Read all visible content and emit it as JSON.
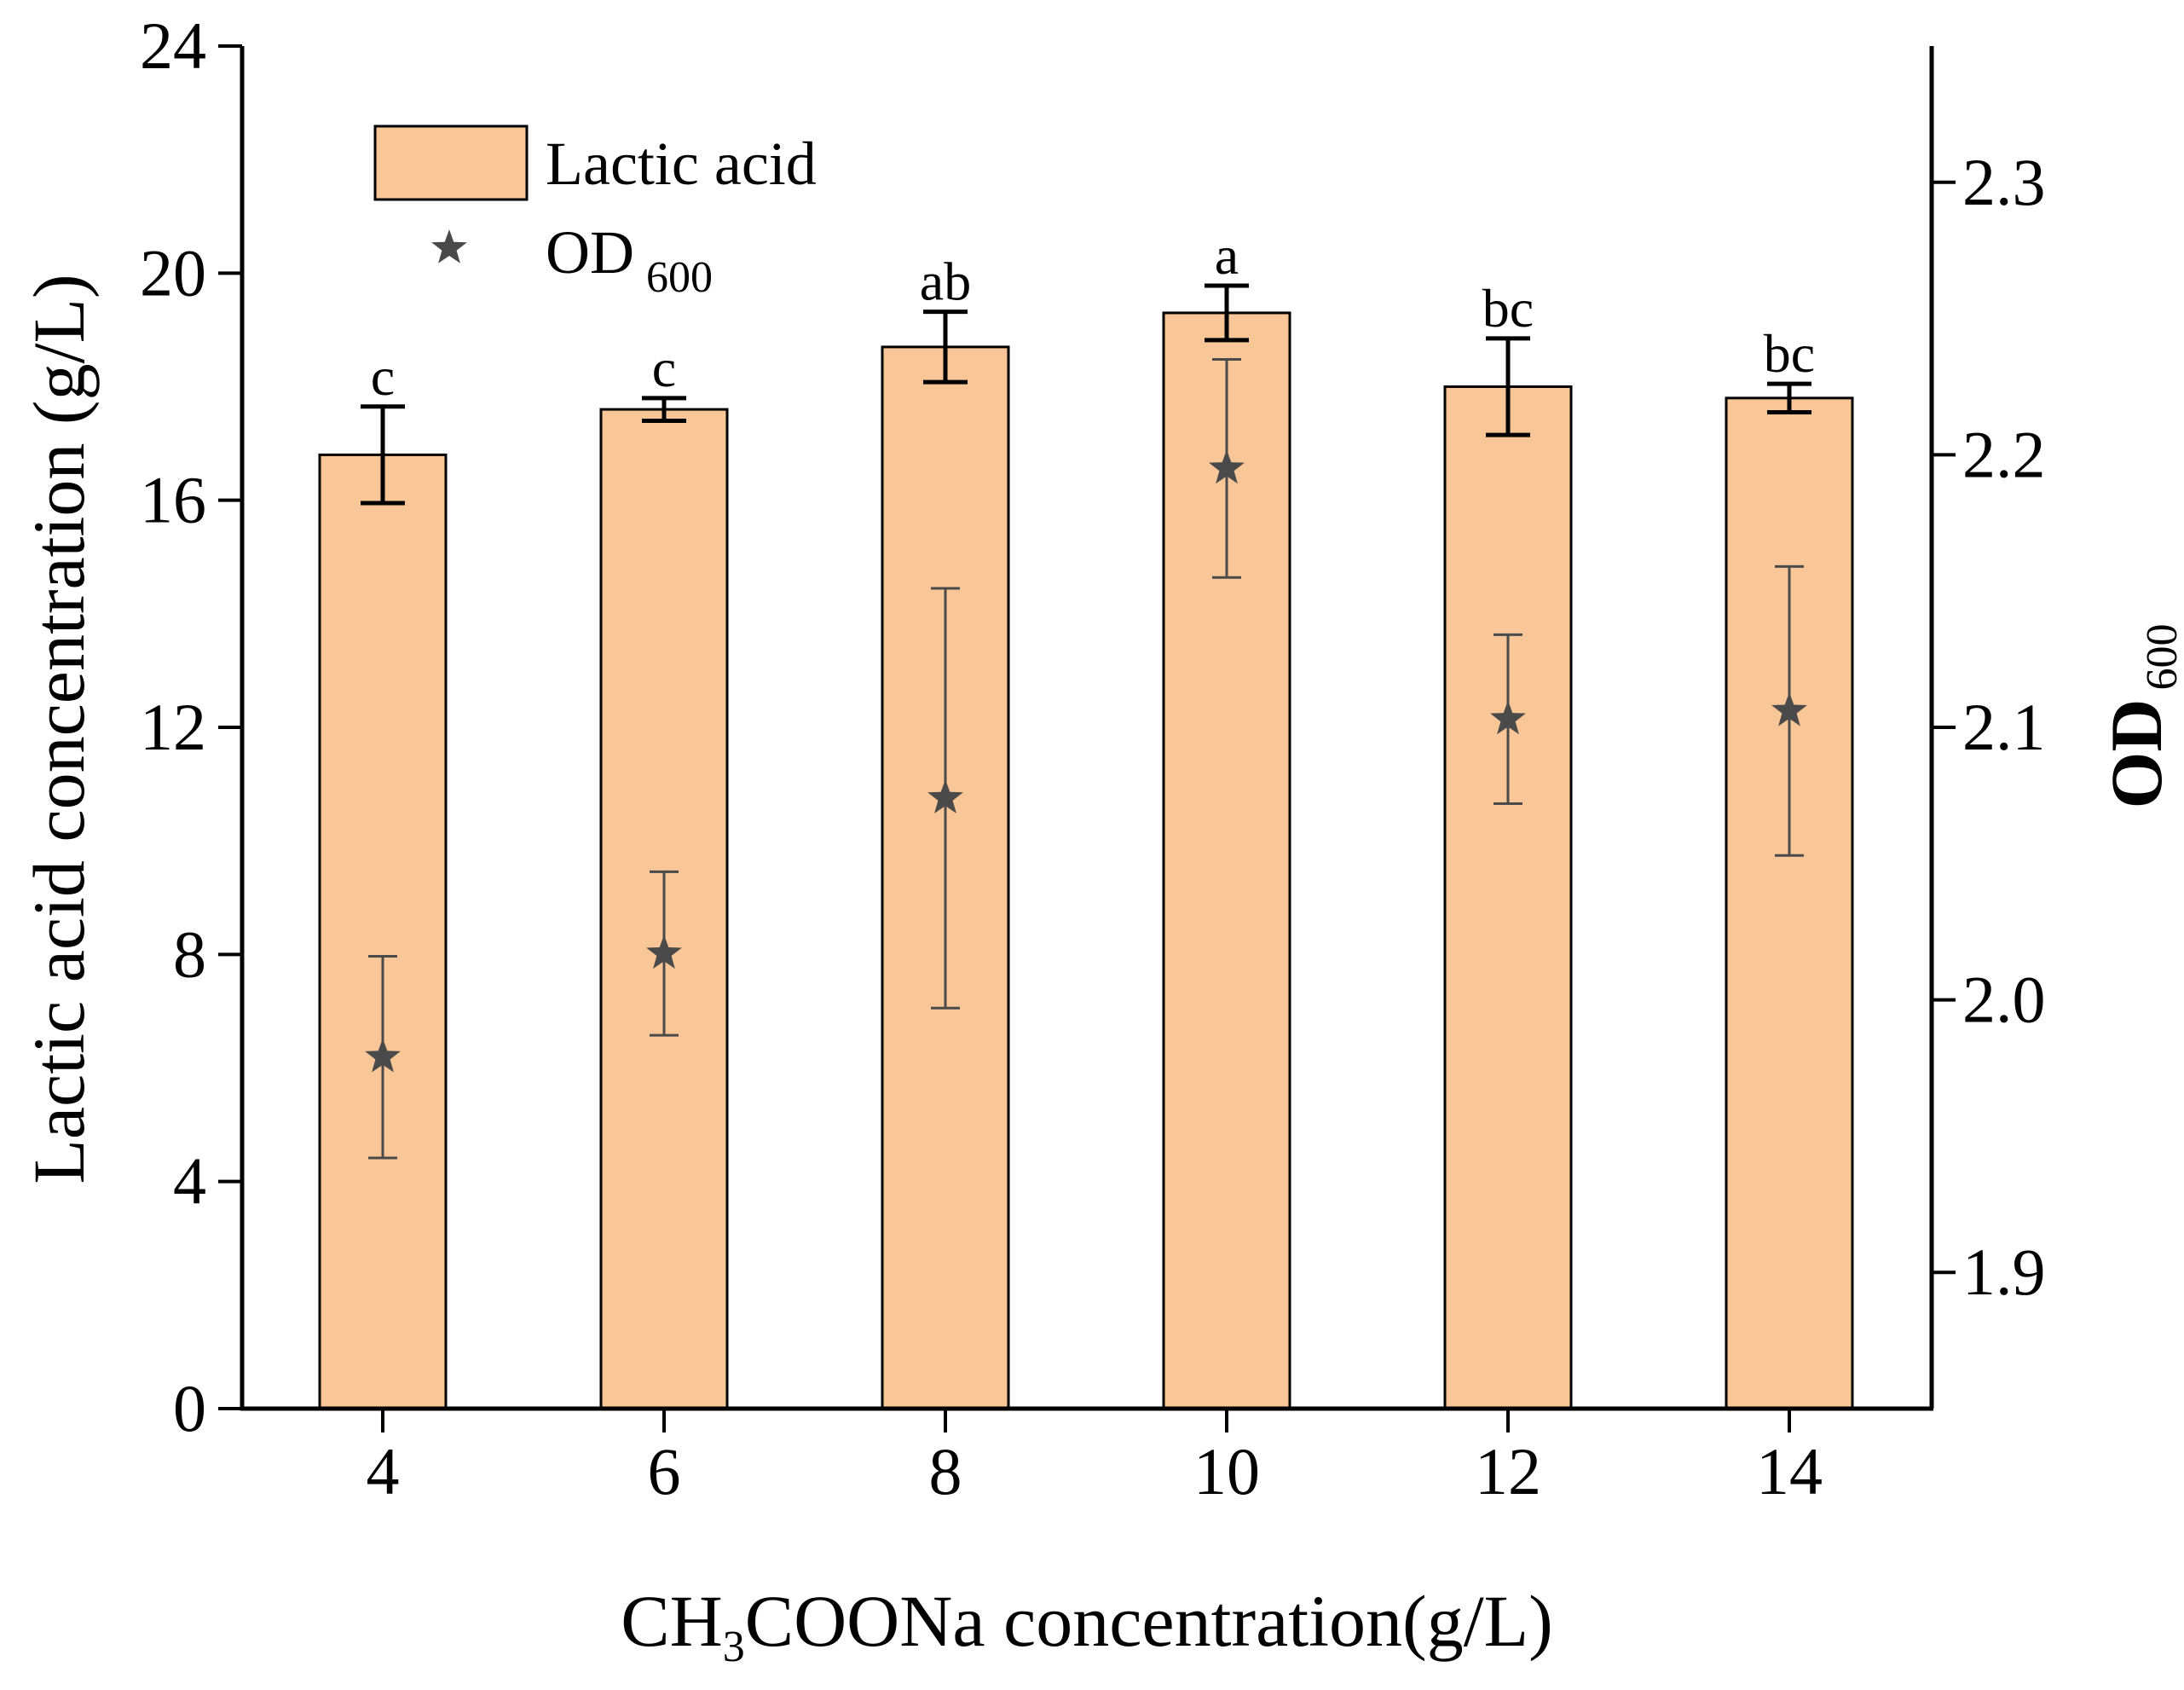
{
  "chart_data": {
    "type": "bar",
    "categories": [
      "4",
      "6",
      "8",
      "10",
      "12",
      "14"
    ],
    "xlabel_parts": {
      "pre": "CH",
      "sub": "3",
      "post": "COONa concentration(g/L)"
    },
    "ylabel": "Lactic acid concentration (g/L)",
    "y2label_parts": {
      "main": "OD",
      "sub": "600"
    },
    "ylim": [
      0,
      24
    ],
    "yticks": [
      "0",
      "4",
      "8",
      "12",
      "16",
      "20",
      "24"
    ],
    "y2lim": [
      1.85,
      2.35
    ],
    "y2ticks": [
      "1.9",
      "2.0",
      "2.1",
      "2.2",
      "2.3"
    ],
    "bar_color": "#f9c797",
    "star_color": "#4a4a4a",
    "legend": {
      "position": "top-left",
      "bar_label": "Lactic acid",
      "star_label_parts": {
        "main": "OD",
        "sub": "600"
      }
    },
    "series": [
      {
        "name": "Lactic acid",
        "axis": "left",
        "style": "bar",
        "values": [
          16.8,
          17.6,
          18.7,
          19.3,
          18.0,
          17.8
        ],
        "errors": [
          0.85,
          0.2,
          0.62,
          0.48,
          0.85,
          0.25
        ],
        "significance": [
          "c",
          "c",
          "ab",
          "a",
          "bc",
          "bc"
        ]
      },
      {
        "name": "OD600",
        "axis": "right",
        "style": "star",
        "values": [
          1.979,
          2.017,
          2.074,
          2.195,
          2.103,
          2.106
        ],
        "errors": [
          0.037,
          0.03,
          0.077,
          0.04,
          0.031,
          0.053
        ]
      }
    ]
  }
}
